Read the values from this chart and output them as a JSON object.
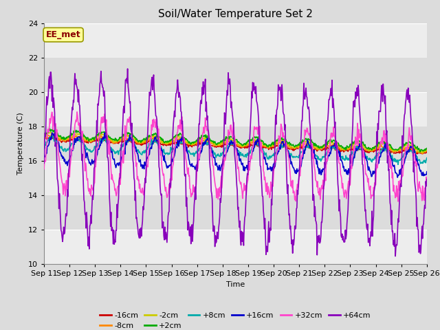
{
  "title": "Soil/Water Temperature Set 2",
  "xlabel": "Time",
  "ylabel": "Temperature (C)",
  "ylim": [
    10,
    24
  ],
  "yticks": [
    10,
    12,
    14,
    16,
    18,
    20,
    22,
    24
  ],
  "background_color": "#dcdcdc",
  "plot_bg_color": "#dcdcdc",
  "watermark_text": "EE_met",
  "watermark_color": "#8b0000",
  "watermark_bg": "#ffff99",
  "series": [
    {
      "label": "-16cm",
      "color": "#cc0000"
    },
    {
      "label": "-8cm",
      "color": "#ff8800"
    },
    {
      "label": "-2cm",
      "color": "#cccc00"
    },
    {
      "label": "+2cm",
      "color": "#00aa00"
    },
    {
      "label": "+8cm",
      "color": "#00aaaa"
    },
    {
      "label": "+16cm",
      "color": "#0000cc"
    },
    {
      "label": "+32cm",
      "color": "#ff44cc"
    },
    {
      "label": "+64cm",
      "color": "#8800bb"
    }
  ],
  "title_fontsize": 11,
  "axis_fontsize": 8,
  "tick_fontsize": 8
}
